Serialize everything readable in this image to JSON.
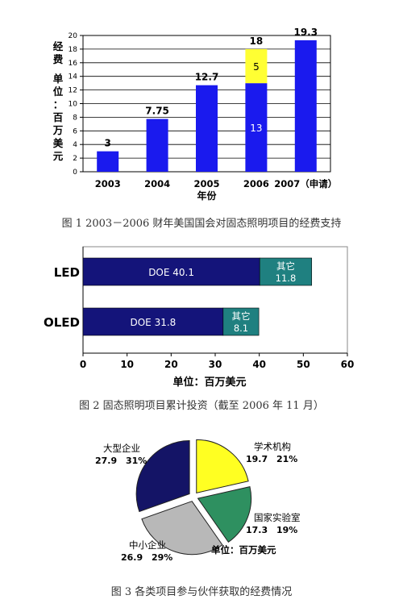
{
  "figure1": {
    "caption": "图 1 2003－2006 财年美国国会对固态照明项目的经费支持",
    "chart_data": {
      "type": "bar",
      "categories": [
        "2003",
        "2004",
        "2005",
        "2006",
        "2007（申请）"
      ],
      "series": [
        {
          "values": [
            3,
            7.75,
            12.7,
            13,
            19.3
          ],
          "color": "#1a1aee"
        },
        {
          "values": [
            0,
            0,
            0,
            5,
            0
          ],
          "color": "#ffff33"
        }
      ],
      "totals": [
        "3",
        "7.75",
        "12.7",
        "18",
        "19.3"
      ],
      "segment_labels": {
        "2006": [
          "13",
          "5"
        ]
      },
      "xlabel": "年份",
      "ylabel": "经费  单位：百万美元",
      "ylim": [
        0,
        20
      ],
      "yticks": [
        0,
        2,
        4,
        6,
        8,
        10,
        12,
        14,
        16,
        18,
        20
      ],
      "grid": true
    }
  },
  "figure2": {
    "caption": "图 2  固态照明项目累计投资（截至 2006 年 11 月）",
    "chart_data": {
      "type": "bar",
      "orientation": "horizontal",
      "categories": [
        "LED",
        "OLED"
      ],
      "series": [
        {
          "values": [
            40.1,
            31.8
          ],
          "labels": [
            "DOE  40.1",
            "DOE  31.8"
          ],
          "color": "#14147a"
        },
        {
          "values": [
            11.8,
            8.1
          ],
          "labels": [
            "其它\n11.8",
            "其它\n8.1"
          ],
          "color": "#1f8080"
        }
      ],
      "xlabel": "单位：百万美元",
      "xlim": [
        0,
        60
      ],
      "xticks": [
        0,
        10,
        20,
        30,
        40,
        50,
        60
      ]
    }
  },
  "figure3": {
    "caption": "图 3  各类项目参与伙伴获取的经费情况",
    "chart_data": {
      "type": "pie",
      "slices": [
        {
          "name": "学术机构",
          "value": 19.7,
          "percent": "21%",
          "color": "#ffff22"
        },
        {
          "name": "国家实验室",
          "value": 17.3,
          "percent": "19%",
          "color": "#2e9060"
        },
        {
          "name": "中小企业",
          "value": 26.9,
          "percent": "29%",
          "color": "#b8b8b8"
        },
        {
          "name": "大型企业",
          "value": 27.9,
          "percent": "31%",
          "color": "#141466"
        }
      ],
      "unit_note": "单位：百万美元"
    }
  }
}
